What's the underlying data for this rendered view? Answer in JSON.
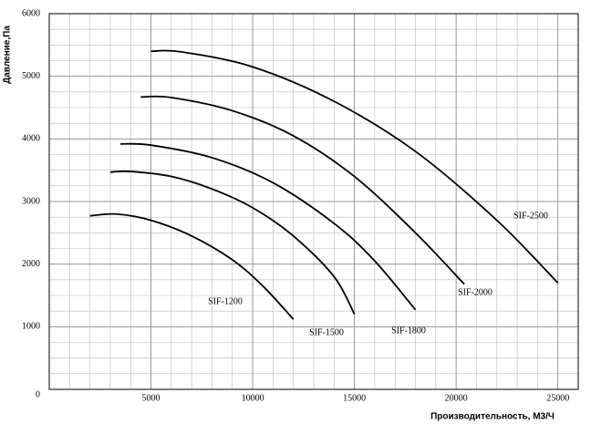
{
  "chart_data": {
    "type": "line",
    "xlabel": "Производительность, М3/Ч",
    "ylabel": "Давление,Па",
    "xlim": [
      0,
      26000
    ],
    "ylim": [
      0,
      6000
    ],
    "xticks": [
      5000,
      10000,
      15000,
      20000,
      25000
    ],
    "yticks": [
      0,
      1000,
      2000,
      3000,
      4000,
      5000,
      6000
    ],
    "grid": true,
    "series": [
      {
        "name": "SIF-1200",
        "color": "#000000",
        "x": [
          2000,
          3300,
          5000,
          7000,
          9000,
          10500,
          12000
        ],
        "values": [
          2770,
          2800,
          2700,
          2450,
          2070,
          1650,
          1120
        ]
      },
      {
        "name": "SIF-1500",
        "color": "#000000",
        "x": [
          3000,
          4000,
          6000,
          8000,
          10000,
          12000,
          14000,
          15000
        ],
        "values": [
          3470,
          3480,
          3400,
          3200,
          2900,
          2450,
          1800,
          1200
        ]
      },
      {
        "name": "SIF-1800",
        "color": "#000000",
        "x": [
          3500,
          5000,
          8000,
          11000,
          14000,
          16000,
          18000
        ],
        "values": [
          3920,
          3900,
          3700,
          3300,
          2650,
          2050,
          1270
        ]
      },
      {
        "name": "SIF-2000",
        "color": "#000000",
        "x": [
          4500,
          6000,
          9000,
          12000,
          15000,
          18000,
          20400
        ],
        "values": [
          4670,
          4660,
          4450,
          4050,
          3400,
          2500,
          1680
        ]
      },
      {
        "name": "SIF-2500",
        "color": "#000000",
        "x": [
          5000,
          6500,
          10000,
          14000,
          18000,
          22000,
          25000
        ],
        "values": [
          5400,
          5390,
          5150,
          4600,
          3800,
          2700,
          1700
        ]
      }
    ]
  }
}
